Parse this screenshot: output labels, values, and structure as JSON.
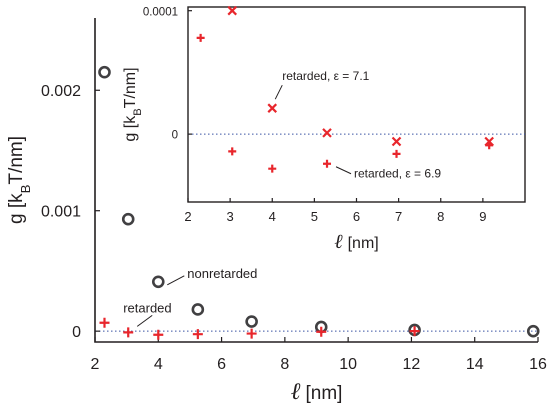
{
  "colors": {
    "axis": "#231f20",
    "circle": "#414042",
    "cross": "#e8262c",
    "zero_line": "#3a53a4"
  },
  "chart_data": [
    {
      "type": "scatter",
      "xlabel_symbol": "ℓ",
      "xlabel": "[nm]",
      "ylabel": {
        "prefix": "g [k",
        "sub": "B",
        "suffix": "T/nm]"
      },
      "xlim": [
        2,
        16
      ],
      "ylim": [
        -9e-05,
        0.0026
      ],
      "xticks": [
        "2",
        "4",
        "6",
        "8",
        "10",
        "12",
        "14",
        "16"
      ],
      "xtick_values": [
        2,
        4,
        6,
        8,
        10,
        12,
        14,
        16
      ],
      "yticks": [
        "0",
        "0.001",
        "0.002"
      ],
      "ytick_values": [
        0,
        0.001,
        0.002
      ],
      "zero_line": "dotted",
      "series": [
        {
          "name": "nonretarded",
          "marker": "circle",
          "x": [
            2.3,
            3.05,
            4.0,
            5.25,
            6.95,
            9.15,
            12.1,
            15.85
          ],
          "y": [
            0.00215,
            0.00093,
            0.00041,
            0.00018,
            8e-05,
            3.5e-05,
            1e-05,
            0.0
          ]
        },
        {
          "name": "retarded",
          "marker": "plus",
          "x": [
            2.3,
            3.05,
            4.0,
            5.25,
            6.95,
            9.15,
            12.1
          ],
          "y": [
            7e-05,
            -1e-05,
            -3e-05,
            -2.5e-05,
            -2e-05,
            -5e-06,
            0.0
          ]
        }
      ],
      "annotations": [
        {
          "text": "nonretarded",
          "target_series": 0,
          "target_index": 2
        },
        {
          "text": "retarded",
          "target_series": 1,
          "target_index": 1
        }
      ]
    },
    {
      "type": "scatter",
      "inset": true,
      "xlabel_symbol": "ℓ",
      "xlabel": "[nm]",
      "ylabel": {
        "prefix": "g [k",
        "sub": "B",
        "suffix": "T/nm]"
      },
      "xlim": [
        2,
        10
      ],
      "ylim": [
        -5.5e-05,
        0.000103
      ],
      "xticks": [
        "2",
        "3",
        "4",
        "5",
        "6",
        "7",
        "8",
        "9"
      ],
      "xtick_values": [
        2,
        3,
        4,
        5,
        6,
        7,
        8,
        9
      ],
      "yticks": [
        "0",
        "0.0001"
      ],
      "ytick_values": [
        0,
        0.0001
      ],
      "zero_line": "dotted",
      "series": [
        {
          "name": "retarded, ε = 7.1",
          "marker": "x",
          "x": [
            3.05,
            4.0,
            5.3,
            6.95,
            9.15
          ],
          "y": [
            0.0001,
            2.1e-05,
            1e-06,
            -6e-06,
            -6e-06
          ]
        },
        {
          "name": "retarded, ε = 6.9",
          "marker": "plus",
          "x": [
            2.3,
            3.05,
            4.0,
            5.3,
            6.95,
            9.15
          ],
          "y": [
            7.8e-05,
            -1.4e-05,
            -2.8e-05,
            -2.4e-05,
            -1.6e-05,
            -9e-06
          ]
        }
      ],
      "annotations": [
        {
          "text": "retarded,  ε = 7.1",
          "target_series": 0,
          "target_index": 1
        },
        {
          "text": "retarded,  ε = 6.9",
          "target_series": 1,
          "target_index": 3
        }
      ]
    }
  ]
}
